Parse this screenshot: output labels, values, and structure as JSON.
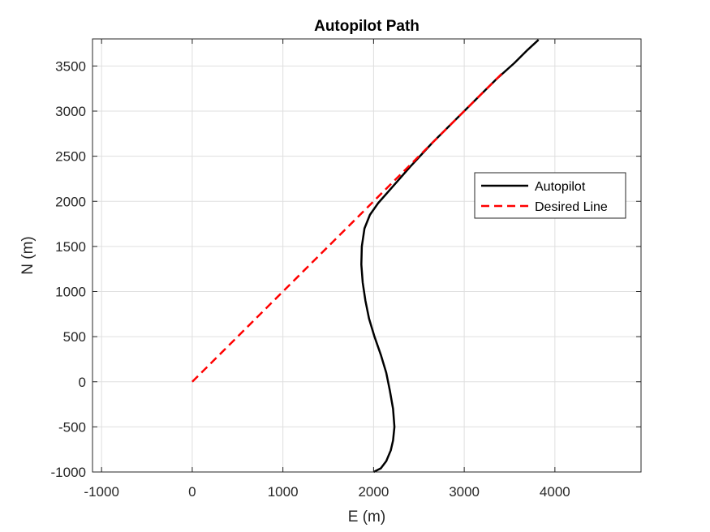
{
  "chart_data": {
    "type": "line",
    "title": "Autopilot Path",
    "xlabel": "E (m)",
    "ylabel": "N (m)",
    "xlim": [
      -1100,
      4950
    ],
    "ylim": [
      -1000,
      3800
    ],
    "xticks": [
      -1000,
      0,
      1000,
      2000,
      3000,
      4000
    ],
    "yticks": [
      -1000,
      -500,
      0,
      500,
      1000,
      1500,
      2000,
      2500,
      3000,
      3500
    ],
    "grid": true,
    "legend_position": "right",
    "series": [
      {
        "name": "Autopilot",
        "color": "#000000",
        "style": "solid",
        "points": [
          [
            2000,
            -1000
          ],
          [
            2080,
            -960
          ],
          [
            2140,
            -880
          ],
          [
            2190,
            -760
          ],
          [
            2215,
            -650
          ],
          [
            2230,
            -500
          ],
          [
            2215,
            -300
          ],
          [
            2180,
            -100
          ],
          [
            2140,
            100
          ],
          [
            2080,
            300
          ],
          [
            2010,
            500
          ],
          [
            1950,
            700
          ],
          [
            1910,
            900
          ],
          [
            1880,
            1100
          ],
          [
            1865,
            1300
          ],
          [
            1870,
            1500
          ],
          [
            1900,
            1700
          ],
          [
            1960,
            1850
          ],
          [
            2050,
            1980
          ],
          [
            2200,
            2150
          ],
          [
            2400,
            2380
          ],
          [
            2650,
            2650
          ],
          [
            2900,
            2900
          ],
          [
            3150,
            3150
          ],
          [
            3350,
            3350
          ],
          [
            3550,
            3530
          ],
          [
            3700,
            3680
          ],
          [
            3820,
            3790
          ]
        ]
      },
      {
        "name": "Desired Line",
        "color": "#ff0000",
        "style": "dashed",
        "points": [
          [
            0,
            0
          ],
          [
            3420,
            3420
          ]
        ]
      }
    ]
  }
}
